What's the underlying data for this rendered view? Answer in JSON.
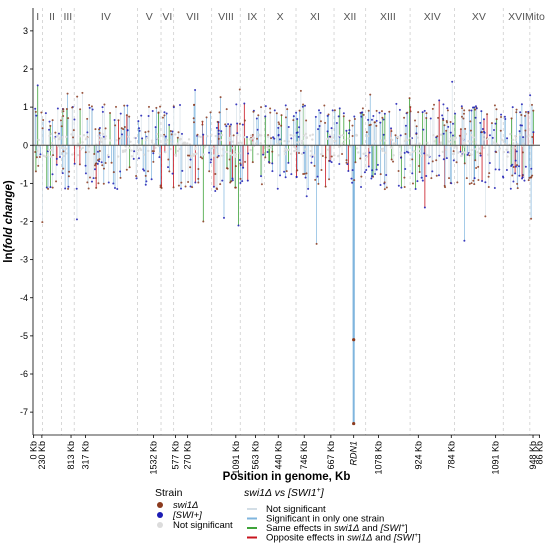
{
  "chart_data": {
    "type": "scatter",
    "title": "",
    "xlabel": "Position in genome, Kb",
    "ylabel_prefix": "ln(",
    "ylabel_italic": "fold change",
    "ylabel_suffix": ")",
    "ylim": [
      -7.6,
      3.6
    ],
    "y_ticks": [
      3,
      2,
      1,
      0,
      -1,
      -2,
      -3,
      -4,
      -5,
      -6,
      -7
    ],
    "grid": true,
    "chromosomes": [
      "I",
      "II",
      "III",
      "IV",
      "V",
      "VI",
      "VII",
      "VIII",
      "IX",
      "X",
      "XI",
      "XII",
      "XIII",
      "XIV",
      "XV",
      "XVI",
      "Mito"
    ],
    "chromosome_starts": [
      0,
      1.5,
      4.5,
      6.5,
      16.5,
      20.2,
      22.2,
      28.2,
      32.7,
      36.5,
      41.5,
      47.5,
      52.5,
      59.5,
      66.5,
      74.2,
      78.4,
      80
    ],
    "position_ticks": [
      {
        "label": "0 Kb",
        "x": 0.1
      },
      {
        "label": "230 Kb",
        "x": 1.4
      },
      {
        "label": "813 Kb",
        "x": 6.0
      },
      {
        "label": "317 Kb",
        "x": 8.3
      },
      {
        "label": "1532 Kb",
        "x": 19.0
      },
      {
        "label": "577 Kb",
        "x": 22.5
      },
      {
        "label": "270 Kb",
        "x": 24.4
      },
      {
        "label": "1091 Kb",
        "x": 32.0
      },
      {
        "label": "563 Kb",
        "x": 35.1
      },
      {
        "label": "440 Kb",
        "x": 38.7
      },
      {
        "label": "746 Kb",
        "x": 42.8
      },
      {
        "label": "667 Kb",
        "x": 47.0
      },
      {
        "label": "RDN1",
        "x": 50.6,
        "highlight": true
      },
      {
        "label": "1078 Kb",
        "x": 54.5
      },
      {
        "label": "924 Kb",
        "x": 60.8
      },
      {
        "label": "784 Kb",
        "x": 66.0
      },
      {
        "label": "1091 Kb",
        "x": 73.0
      },
      {
        "label": "948 Kb",
        "x": 78.9
      },
      {
        "label": "86 Kb",
        "x": 79.9
      }
    ],
    "special_points": [
      {
        "name": "RDN1 swi1Δ",
        "x": 50.6,
        "y": -5.1,
        "category": "significant_one"
      },
      {
        "name": "RDN1 [SWI+]",
        "x": 50.6,
        "y": -7.3,
        "category": "significant_one"
      }
    ],
    "colors": {
      "swi1": "#8B3A1E",
      "swi_plus": "#1C1CB4",
      "not_significant_point": "#DCDCDC",
      "not_significant_line": "#D3DEE6",
      "significant_one": "#7FB5DE",
      "same_effects": "#3FA33A",
      "opposite_effects": "#C8141E",
      "axis_zero": "#444444",
      "rdn1_label": "#E03030"
    }
  },
  "legend": {
    "strain_title": "Strain",
    "strain_items": [
      {
        "label": "swi1Δ"
      },
      {
        "label": "[SWI+]"
      },
      {
        "label": "Not significant"
      }
    ],
    "comparison_title_base": "swi1Δ vs [SWI1",
    "comparison_title_sup": "+",
    "comparison_title_end": "]",
    "line_items": [
      {
        "label": "Not significant"
      },
      {
        "label": "Significant in only one strain"
      },
      {
        "label_prefix": "Same effects in ",
        "label_mid": "swi1Δ",
        "label_and": " and ",
        "label_swi": "[SWI",
        "label_sup": "+",
        "label_end": "]"
      },
      {
        "label_prefix": "Opposite effects in ",
        "label_mid": "swi1Δ",
        "label_and": " and ",
        "label_swi": "[SWI",
        "label_sup": "+",
        "label_end": "]"
      }
    ]
  }
}
